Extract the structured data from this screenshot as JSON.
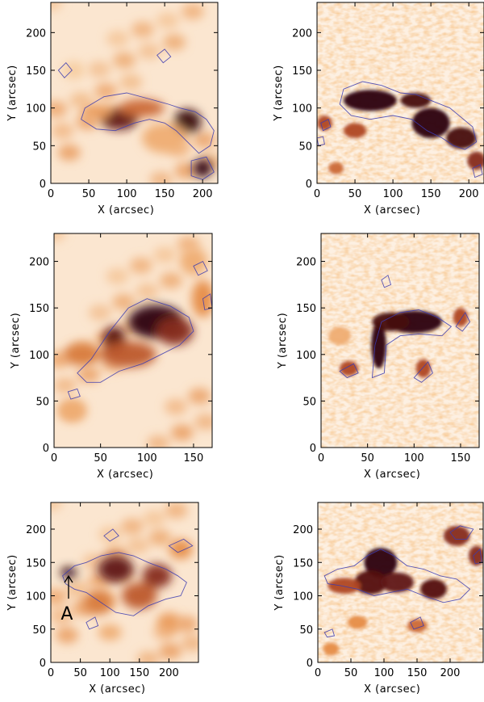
{
  "figure": {
    "annotation": "A"
  },
  "chart_data": [
    {
      "type": "heatmap",
      "panel": "row1-left",
      "style": "smooth",
      "xlabel": "X  (arcsec)",
      "ylabel": "Y  (arcsec)",
      "xlim": [
        0,
        220
      ],
      "ylim": [
        0,
        240
      ],
      "xticks": [
        0,
        50,
        100,
        150,
        200
      ],
      "yticks": [
        0,
        50,
        100,
        150,
        200
      ],
      "contour_color": "#3b3bb0"
    },
    {
      "type": "heatmap",
      "panel": "row1-right",
      "style": "noisy",
      "xlabel": "X  (arcsec)",
      "ylabel": "Y  (arcsec)",
      "xlim": [
        0,
        220
      ],
      "ylim": [
        0,
        240
      ],
      "xticks": [
        0,
        50,
        100,
        150,
        200
      ],
      "yticks": [
        0,
        50,
        100,
        150,
        200
      ],
      "contour_color": "#3b3bb0"
    },
    {
      "type": "heatmap",
      "panel": "row2-left",
      "style": "smooth",
      "xlabel": "X  (arcsec)",
      "ylabel": "Y  (arcsec)",
      "xlim": [
        0,
        170
      ],
      "ylim": [
        0,
        230
      ],
      "xticks": [
        0,
        50,
        100,
        150
      ],
      "yticks": [
        0,
        50,
        100,
        150,
        200
      ],
      "contour_color": "#3b3bb0"
    },
    {
      "type": "heatmap",
      "panel": "row2-right",
      "style": "noisy",
      "xlabel": "X  (arcsec)",
      "ylabel": "Y  (arcsec)",
      "xlim": [
        0,
        170
      ],
      "ylim": [
        0,
        230
      ],
      "xticks": [
        0,
        50,
        100,
        150
      ],
      "yticks": [
        0,
        50,
        100,
        150,
        200
      ],
      "contour_color": "#3b3bb0"
    },
    {
      "type": "heatmap",
      "panel": "row3-left",
      "style": "smooth",
      "xlabel": "X  (arcsec)",
      "ylabel": "Y  (arcsec)",
      "xlim": [
        0,
        250
      ],
      "ylim": [
        0,
        240
      ],
      "xticks": [
        0,
        50,
        100,
        150,
        200
      ],
      "yticks": [
        0,
        50,
        100,
        150,
        200
      ],
      "contour_color": "#3b3bb0"
    },
    {
      "type": "heatmap",
      "panel": "row3-right",
      "style": "noisy",
      "xlabel": "X  (arcsec)",
      "ylabel": "Y  (arcsec)",
      "xlim": [
        0,
        250
      ],
      "ylim": [
        0,
        240
      ],
      "xticks": [
        0,
        50,
        100,
        150,
        200
      ],
      "yticks": [
        0,
        50,
        100,
        150,
        200
      ],
      "contour_color": "#3b3bb0"
    }
  ]
}
